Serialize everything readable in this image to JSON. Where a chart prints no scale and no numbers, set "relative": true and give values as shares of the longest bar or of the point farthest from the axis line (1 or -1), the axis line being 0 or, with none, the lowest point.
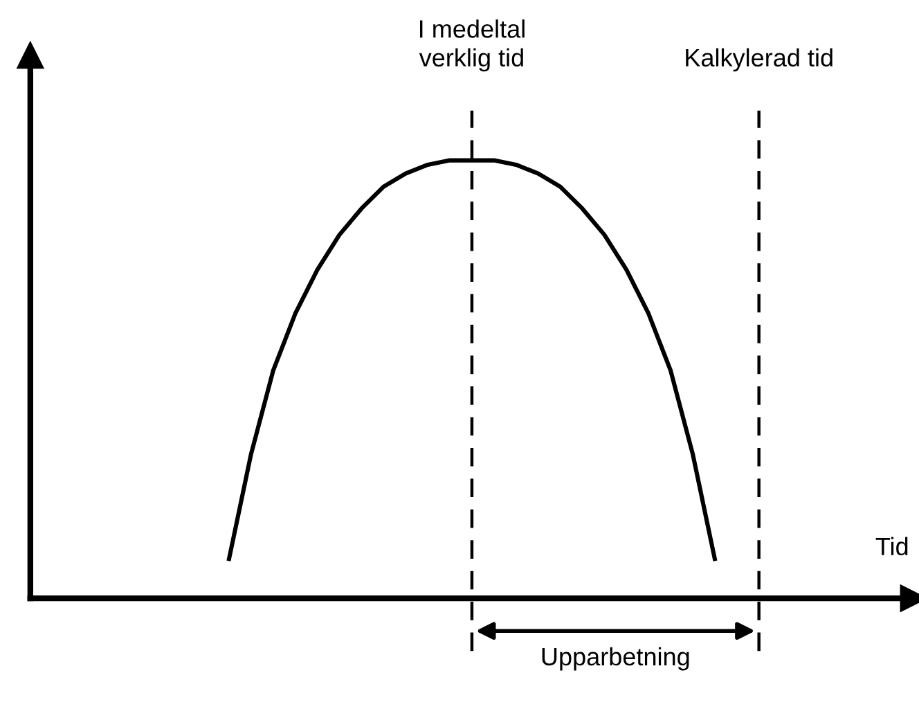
{
  "chart_data": {
    "type": "line",
    "relative": true,
    "xlabel": "Tid",
    "categories": [
      null,
      null,
      null,
      null,
      null,
      null,
      null,
      null,
      null,
      null,
      null,
      null,
      null,
      null,
      null,
      null,
      null,
      null,
      null,
      null,
      null,
      null,
      null,
      null,
      null,
      null,
      null,
      null,
      null,
      null,
      null,
      null,
      null,
      null,
      null,
      null,
      null,
      null,
      null,
      null,
      null
    ],
    "series": [
      {
        "color": "#000000",
        "values": [
          null,
          null,
          null,
          null,
          null,
          null,
          null,
          null,
          null,
          0.09,
          0.33,
          0.52,
          0.65,
          0.75,
          0.83,
          0.89,
          0.94,
          0.97,
          0.99,
          1.0,
          1.0,
          1.0,
          0.99,
          0.97,
          0.94,
          0.89,
          0.83,
          0.75,
          0.65,
          0.52,
          0.33,
          0.09,
          null,
          null,
          null,
          null,
          null,
          null,
          null,
          null,
          null
        ]
      }
    ],
    "annotations": [
      "I medeltal\nverklig tid",
      "Kalkylerad tid",
      "Upparbetning"
    ],
    "line_style": "solid",
    "marker": "none"
  }
}
